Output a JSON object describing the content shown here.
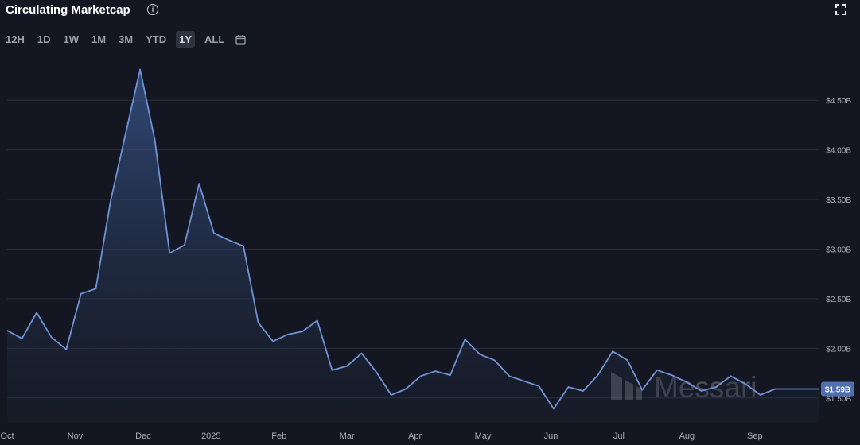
{
  "header": {
    "title": "Circulating Marketcap",
    "info_icon": "info-icon",
    "expand_icon": "fullscreen-icon"
  },
  "ranges": {
    "buttons": [
      "12H",
      "1D",
      "1W",
      "1M",
      "3M",
      "YTD",
      "1Y",
      "ALL"
    ],
    "active": "1Y",
    "calendar_icon": "calendar-icon"
  },
  "watermark": "Messari",
  "colors": {
    "background": "#141721",
    "line": "#6f93d6",
    "badge": "#4f6fae"
  },
  "chart_data": {
    "type": "area",
    "ylim": [
      1.25,
      4.95
    ],
    "y_ticks": [
      {
        "value": 1.5,
        "label": "$1.50B"
      },
      {
        "value": 2.0,
        "label": "$2.00B"
      },
      {
        "value": 2.5,
        "label": "$2.50B"
      },
      {
        "value": 3.0,
        "label": "$3.00B"
      },
      {
        "value": 3.5,
        "label": "$3.50B"
      },
      {
        "value": 4.0,
        "label": "$4.00B"
      },
      {
        "value": 4.5,
        "label": "$4.50B"
      }
    ],
    "x_ticks": [
      "Oct",
      "Nov",
      "Dec",
      "2025",
      "Feb",
      "Mar",
      "Apr",
      "May",
      "Jun",
      "Jul",
      "Aug",
      "Sep"
    ],
    "current_value": {
      "value": 1.59,
      "label": "$1.59B"
    },
    "x": [
      0,
      0.31,
      0.62,
      0.93,
      1.24,
      1.55,
      1.86,
      2.17,
      2.48,
      2.79,
      3.1,
      3.41,
      3.72,
      4.03,
      4.34,
      4.65,
      4.96,
      5.27,
      5.58,
      5.89,
      6.2,
      6.51,
      6.82,
      7.13,
      7.44,
      7.75,
      8.06,
      8.37,
      8.68,
      8.99,
      9.3,
      9.61,
      9.92,
      10.23,
      10.54,
      10.85,
      11.16,
      11.47,
      11.78,
      12.09,
      12.4,
      12.71,
      13.02,
      13.33,
      13.64,
      13.95,
      14.26,
      14.57,
      14.88,
      15.19,
      15.5,
      15.81,
      16.12,
      16.43,
      16.74,
      17.05
    ],
    "values": [
      2.18,
      2.1,
      2.36,
      2.11,
      1.99,
      2.55,
      2.6,
      3.48,
      4.15,
      4.81,
      4.1,
      2.96,
      3.04,
      3.66,
      3.16,
      3.09,
      3.03,
      2.26,
      2.07,
      2.14,
      2.17,
      2.28,
      1.78,
      1.82,
      1.95,
      1.76,
      1.53,
      1.59,
      1.72,
      1.77,
      1.73,
      2.09,
      1.94,
      1.88,
      1.72,
      1.67,
      1.62,
      1.39,
      1.61,
      1.57,
      1.73,
      1.97,
      1.88,
      1.58,
      1.78,
      1.73,
      1.66,
      1.57,
      1.61,
      1.72,
      1.64,
      1.53,
      1.59,
      1.59,
      1.59,
      1.59
    ]
  }
}
